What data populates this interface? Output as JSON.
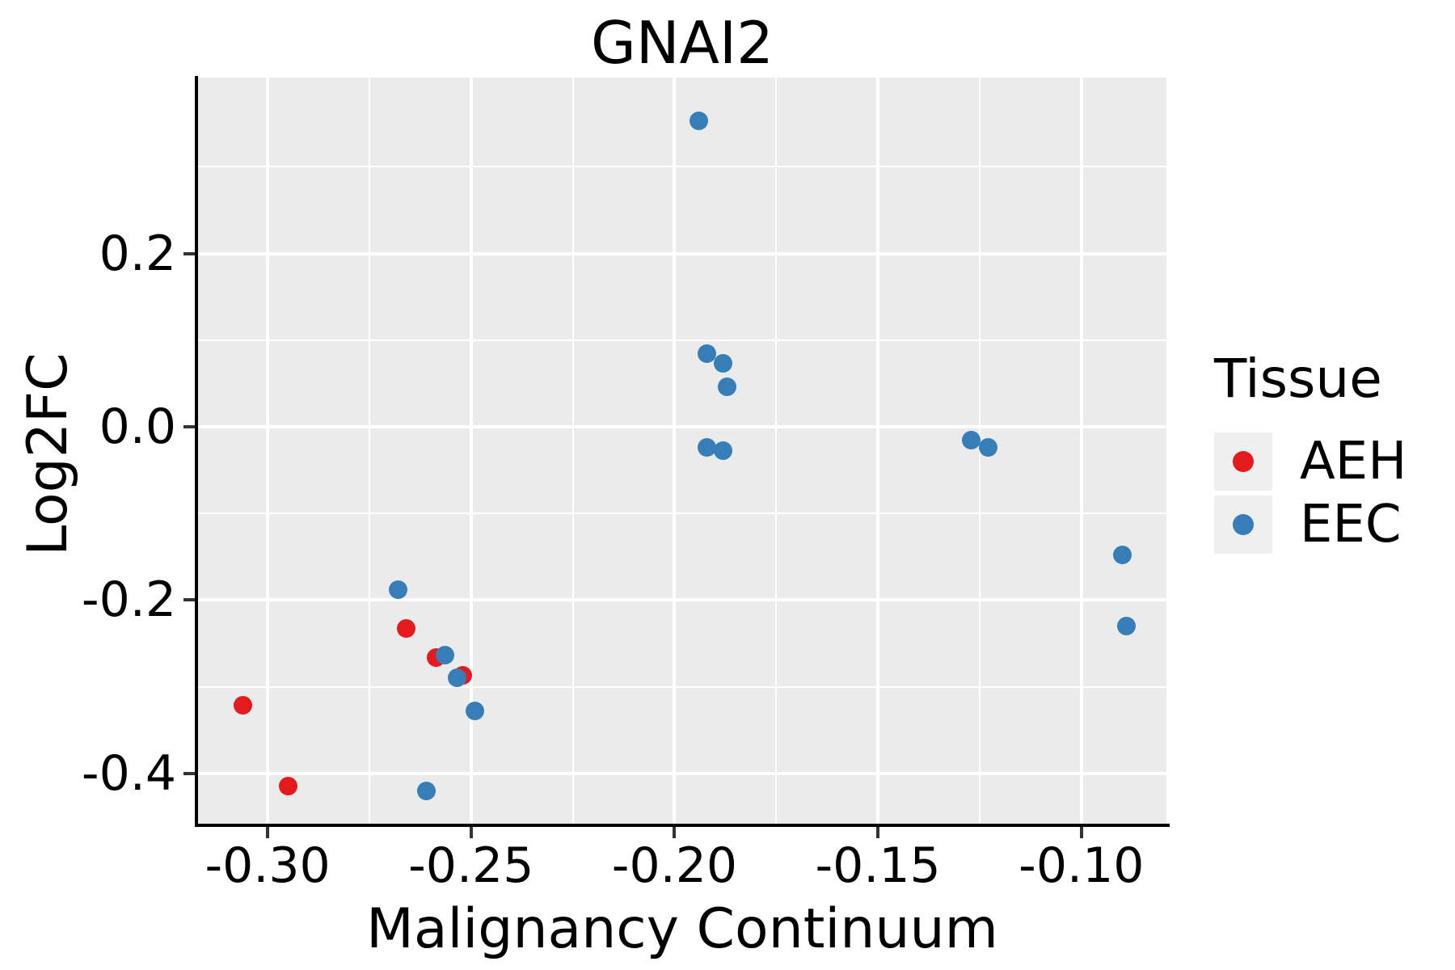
{
  "chart_data": {
    "type": "scatter",
    "title": "GNAI2",
    "xlabel": "Malignancy Continuum",
    "ylabel": "Log2FC",
    "panel_bg": "#ebebeb",
    "grid_color": "#ffffff",
    "axis_line_color": "#000000",
    "tick_color": "#333333",
    "xlim": [
      -0.3171,
      -0.0791
    ],
    "ylim": [
      -0.46,
      0.403
    ],
    "x_ticks": [
      {
        "v": -0.3,
        "label": "-0.30"
      },
      {
        "v": -0.25,
        "label": "-0.25"
      },
      {
        "v": -0.2,
        "label": "-0.20"
      },
      {
        "v": -0.15,
        "label": "-0.15"
      },
      {
        "v": -0.1,
        "label": "-0.10"
      }
    ],
    "x_minor_ticks": [
      -0.275,
      -0.225,
      -0.175,
      -0.125
    ],
    "y_ticks": [
      {
        "v": 0.2,
        "label": "0.2"
      },
      {
        "v": 0.0,
        "label": "0.0"
      },
      {
        "v": -0.2,
        "label": "-0.2"
      },
      {
        "v": -0.4,
        "label": "-0.4"
      }
    ],
    "y_minor_ticks": [
      0.3,
      0.1,
      -0.1,
      -0.3
    ],
    "legend": {
      "title": "Tissue",
      "key_bg": "#efefef",
      "items": [
        {
          "label": "AEH",
          "color": "#e41a1c"
        },
        {
          "label": "EEC",
          "color": "#377eb8"
        }
      ]
    },
    "series": [
      {
        "name": "AEH",
        "color": "#e41a1c",
        "points": [
          [
            -0.306,
            -0.321
          ],
          [
            -0.295,
            -0.415
          ],
          [
            -0.266,
            -0.233
          ],
          [
            -0.2585,
            -0.266
          ],
          [
            -0.252,
            -0.2865
          ]
        ]
      },
      {
        "name": "EEC",
        "color": "#377eb8",
        "points": [
          [
            -0.268,
            -0.188
          ],
          [
            -0.2565,
            -0.2635
          ],
          [
            -0.2535,
            -0.2895
          ],
          [
            -0.249,
            -0.328
          ],
          [
            -0.261,
            -0.42
          ],
          [
            -0.194,
            0.353
          ],
          [
            -0.192,
            0.084
          ],
          [
            -0.188,
            0.073
          ],
          [
            -0.187,
            0.046
          ],
          [
            -0.192,
            -0.024
          ],
          [
            -0.188,
            -0.028
          ],
          [
            -0.127,
            -0.015
          ],
          [
            -0.123,
            -0.024
          ],
          [
            -0.09,
            -0.148
          ],
          [
            -0.089,
            -0.23
          ]
        ]
      }
    ]
  }
}
